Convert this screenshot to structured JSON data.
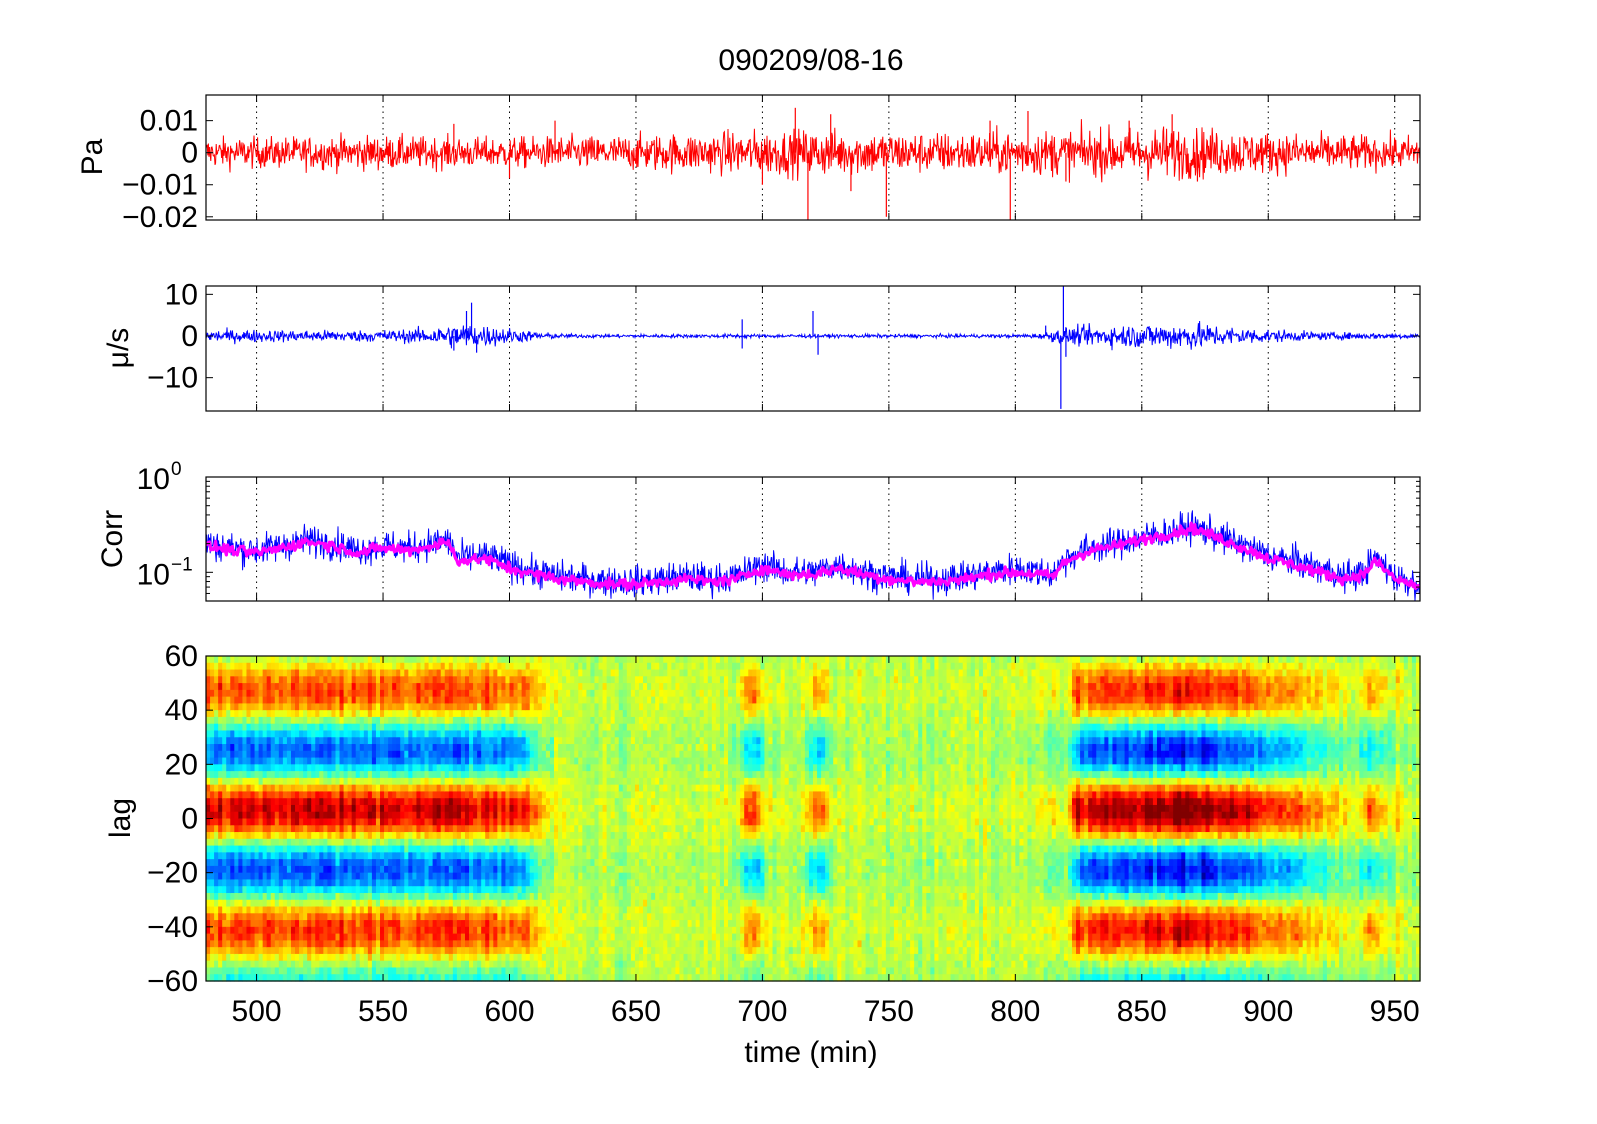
{
  "chart_data": [
    {
      "type": "line",
      "panel": "pressure",
      "title": "090209/08-16",
      "ylabel": "Pa",
      "xlim": [
        480,
        960
      ],
      "ylim": [
        -0.021,
        0.018
      ],
      "yticks": [
        0.01,
        0,
        -0.01,
        -0.02
      ],
      "ytick_labels": [
        "0.01",
        "0",
        "−0.01",
        "−0.02"
      ],
      "xticks": [
        500,
        550,
        600,
        650,
        700,
        750,
        800,
        850,
        900,
        950
      ],
      "grid": true,
      "series": [
        {
          "color": "#ff0000",
          "envelope": {
            "x": [
              480,
              500,
              520,
              540,
              560,
              580,
              600,
              620,
              640,
              660,
              680,
              700,
              720,
              740,
              760,
              780,
              800,
              820,
              840,
              860,
              880,
              900,
              920,
              940,
              960
            ],
            "amplitude": [
              0.0045,
              0.0045,
              0.0048,
              0.005,
              0.0048,
              0.0045,
              0.0045,
              0.0048,
              0.005,
              0.0055,
              0.006,
              0.0065,
              0.0068,
              0.0065,
              0.006,
              0.006,
              0.0065,
              0.0068,
              0.007,
              0.008,
              0.007,
              0.006,
              0.0055,
              0.005,
              0.0048
            ]
          },
          "spikes": [
            {
              "x": 578,
              "y": 0.009
            },
            {
              "x": 600,
              "y": -0.008
            },
            {
              "x": 618,
              "y": 0.01
            },
            {
              "x": 700,
              "y": -0.01
            },
            {
              "x": 713,
              "y": 0.014
            },
            {
              "x": 718,
              "y": -0.021
            },
            {
              "x": 727,
              "y": 0.012
            },
            {
              "x": 735,
              "y": -0.012
            },
            {
              "x": 749,
              "y": -0.02
            },
            {
              "x": 790,
              "y": 0.01
            },
            {
              "x": 798,
              "y": -0.021
            },
            {
              "x": 805,
              "y": 0.013
            },
            {
              "x": 820,
              "y": -0.009
            },
            {
              "x": 845,
              "y": 0.01
            },
            {
              "x": 862,
              "y": 0.012
            },
            {
              "x": 872,
              "y": -0.009
            }
          ]
        }
      ]
    },
    {
      "type": "line",
      "panel": "velocity",
      "ylabel": "μ/s",
      "xlim": [
        480,
        960
      ],
      "ylim": [
        -18,
        12
      ],
      "yticks": [
        10,
        0,
        -10
      ],
      "ytick_labels": [
        "10",
        "0",
        "−10"
      ],
      "xticks": [
        500,
        550,
        600,
        650,
        700,
        750,
        800,
        850,
        900,
        950
      ],
      "grid": true,
      "series": [
        {
          "color": "#0000ff",
          "envelope": {
            "x": [
              480,
              500,
              520,
              540,
              560,
              570,
              580,
              590,
              600,
              610,
              620,
              640,
              660,
              680,
              690,
              700,
              720,
              740,
              760,
              780,
              800,
              810,
              820,
              840,
              860,
              870,
              880,
              900,
              920,
              940,
              960
            ],
            "amplitude": [
              1.4,
              1.4,
              1.3,
              1.3,
              1.5,
              2,
              3,
              2.5,
              1.8,
              1,
              0.5,
              0.4,
              0.4,
              0.4,
              0.5,
              0.4,
              0.4,
              0.4,
              0.4,
              0.4,
              0.4,
              0.6,
              2,
              2.5,
              3,
              3.2,
              2.4,
              1.5,
              0.9,
              0.7,
              0.6
            ]
          },
          "spikes": [
            {
              "x": 578,
              "y": -3.5
            },
            {
              "x": 583,
              "y": 6
            },
            {
              "x": 585,
              "y": 8
            },
            {
              "x": 587,
              "y": -4
            },
            {
              "x": 692,
              "y": 4
            },
            {
              "x": 692,
              "y": -3
            },
            {
              "x": 720,
              "y": 6
            },
            {
              "x": 722,
              "y": -4.5
            },
            {
              "x": 812,
              "y": 2.5
            },
            {
              "x": 818,
              "y": -17.5
            },
            {
              "x": 819,
              "y": 12
            },
            {
              "x": 820,
              "y": -5
            }
          ]
        }
      ]
    },
    {
      "type": "line",
      "panel": "correlation",
      "ylabel": "Corr",
      "yscale": "log",
      "xlim": [
        480,
        960
      ],
      "ylim": [
        0.05,
        1
      ],
      "yticks": [
        1,
        0.1
      ],
      "ytick_labels": [
        {
          "base": "10",
          "exp": "0"
        },
        {
          "base": "10",
          "exp": "−1"
        }
      ],
      "xticks": [
        500,
        550,
        600,
        650,
        700,
        750,
        800,
        850,
        900,
        950
      ],
      "grid": true,
      "series": [
        {
          "color": "#0000ff",
          "x": [
            480,
            490,
            500,
            510,
            520,
            530,
            540,
            550,
            560,
            570,
            575,
            580,
            590,
            600,
            610,
            620,
            630,
            640,
            650,
            660,
            670,
            680,
            690,
            700,
            710,
            720,
            730,
            740,
            750,
            760,
            770,
            780,
            790,
            800,
            810,
            815,
            820,
            830,
            840,
            850,
            860,
            870,
            880,
            890,
            900,
            910,
            920,
            930,
            938,
            942,
            950,
            960
          ],
          "y": [
            0.2,
            0.18,
            0.17,
            0.19,
            0.22,
            0.2,
            0.17,
            0.19,
            0.18,
            0.2,
            0.22,
            0.14,
            0.15,
            0.12,
            0.1,
            0.09,
            0.085,
            0.08,
            0.08,
            0.085,
            0.09,
            0.085,
            0.09,
            0.12,
            0.1,
            0.1,
            0.12,
            0.1,
            0.09,
            0.085,
            0.085,
            0.09,
            0.1,
            0.11,
            0.1,
            0.095,
            0.14,
            0.18,
            0.2,
            0.23,
            0.26,
            0.3,
            0.24,
            0.19,
            0.15,
            0.13,
            0.11,
            0.09,
            0.1,
            0.14,
            0.09,
            0.075
          ],
          "noise": 0.35
        },
        {
          "color": "#ff00ff",
          "x": [
            480,
            490,
            500,
            510,
            520,
            530,
            540,
            550,
            560,
            570,
            575,
            580,
            590,
            600,
            610,
            620,
            630,
            640,
            650,
            660,
            670,
            680,
            690,
            700,
            710,
            720,
            730,
            740,
            750,
            760,
            770,
            780,
            790,
            800,
            810,
            815,
            820,
            830,
            840,
            850,
            860,
            870,
            880,
            890,
            900,
            910,
            920,
            930,
            938,
            942,
            950,
            960
          ],
          "y": [
            0.19,
            0.17,
            0.16,
            0.18,
            0.21,
            0.19,
            0.16,
            0.18,
            0.17,
            0.19,
            0.21,
            0.13,
            0.14,
            0.11,
            0.095,
            0.085,
            0.08,
            0.075,
            0.075,
            0.08,
            0.085,
            0.08,
            0.085,
            0.11,
            0.095,
            0.095,
            0.11,
            0.095,
            0.085,
            0.08,
            0.08,
            0.085,
            0.095,
            0.1,
            0.095,
            0.09,
            0.13,
            0.17,
            0.19,
            0.22,
            0.25,
            0.29,
            0.23,
            0.18,
            0.14,
            0.12,
            0.1,
            0.085,
            0.095,
            0.13,
            0.085,
            0.07
          ],
          "noise": 0.12
        }
      ]
    },
    {
      "type": "heatmap",
      "panel": "lag",
      "ylabel": "lag",
      "xlabel": "time (min)",
      "xlim": [
        480,
        960
      ],
      "ylim": [
        -60,
        60
      ],
      "yticks": [
        60,
        40,
        20,
        0,
        -20,
        -40,
        -60
      ],
      "ytick_labels": [
        "60",
        "40",
        "20",
        "0",
        "−20",
        "−40",
        "−60"
      ],
      "xticks": [
        500,
        550,
        600,
        650,
        700,
        750,
        800,
        850,
        900,
        950
      ],
      "xtick_labels": [
        "500",
        "550",
        "600",
        "650",
        "700",
        "750",
        "800",
        "850",
        "900",
        "950"
      ],
      "colormap": "jet",
      "strength": {
        "x": [
          480,
          500,
          520,
          540,
          560,
          575,
          590,
          605,
          612,
          620,
          640,
          660,
          680,
          690,
          694,
          698,
          702,
          715,
          720,
          724,
          728,
          740,
          760,
          780,
          800,
          810,
          815,
          820,
          825,
          840,
          860,
          870,
          880,
          900,
          915,
          925,
          935,
          940,
          945,
          955,
          960
        ],
        "values": [
          0.85,
          0.85,
          0.9,
          0.88,
          0.85,
          0.9,
          0.8,
          0.75,
          0.3,
          0.05,
          0.05,
          0.05,
          0.05,
          0.1,
          0.6,
          0.6,
          0.1,
          0.05,
          0.5,
          0.5,
          0.05,
          0.05,
          0.05,
          0.05,
          0.05,
          0.1,
          0.25,
          0.1,
          0.85,
          1.0,
          1.05,
          1.1,
          1.0,
          0.75,
          0.5,
          0.35,
          0.15,
          0.55,
          0.3,
          0.08,
          0.05
        ]
      }
    }
  ]
}
